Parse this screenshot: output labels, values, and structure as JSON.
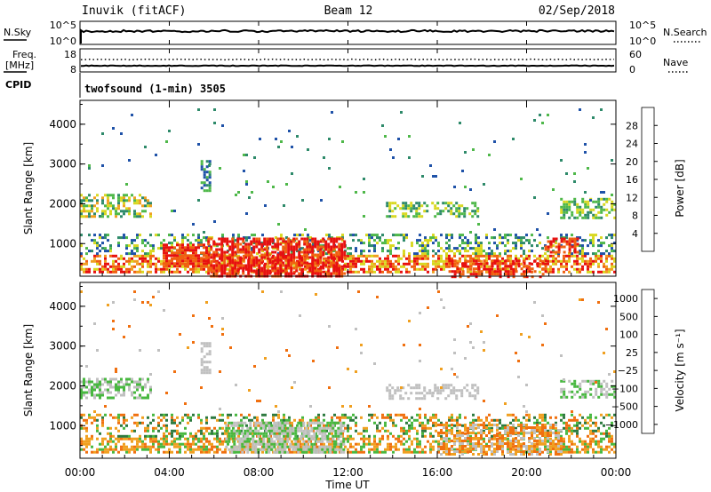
{
  "header": {
    "station": "Inuvik (fitACF)",
    "beam": "Beam 12",
    "date": "02/Sep/2018"
  },
  "top_panels": {
    "nsky_label": "N.Sky",
    "nsky_ticks": [
      "10^5",
      "10^0"
    ],
    "nsearch_label": "N.Search",
    "nsearch_ticks": [
      "10^5",
      "10^0"
    ],
    "freq_label_1": "Freq.",
    "freq_label_2": "[MHz]",
    "freq_ticks": [
      "18",
      "8"
    ],
    "nave_label": "Nave",
    "nave_ticks": [
      "60",
      "0"
    ],
    "cpid_label": "CPID",
    "cpid_text": "twofsound (1-min) 3505"
  },
  "chart_data": [
    {
      "type": "heatmap",
      "name": "power",
      "ylabel": "Slant Range [km]",
      "yticks": [
        "1000",
        "2000",
        "3000",
        "4000"
      ],
      "ylim": [
        180,
        4600
      ],
      "xlim": [
        0,
        24
      ],
      "xticks": [
        "00:00",
        "04:00",
        "08:00",
        "12:00",
        "16:00",
        "20:00",
        "00:00"
      ],
      "colorbar_label": "Power [dB]",
      "colorbar_ticks": [
        "4",
        "8",
        "12",
        "16",
        "20",
        "24",
        "28"
      ],
      "colors": [
        "#1030ff",
        "#1f52a8",
        "#2e8a6a",
        "#4fb84a",
        "#d8d820",
        "#f0a020",
        "#f06010",
        "#e81010"
      ],
      "bands": [
        {
          "t": [
            0.0,
            24.0
          ],
          "r": [
            260,
            720
          ],
          "levels": [
            4,
            5,
            6,
            7
          ],
          "d": 0.6
        },
        {
          "t": [
            0.0,
            24.0
          ],
          "r": [
            720,
            1250
          ],
          "levels": [
            1,
            2,
            3,
            4
          ],
          "d": 0.35
        },
        {
          "t": [
            0.0,
            3.2
          ],
          "r": [
            1650,
            2250
          ],
          "levels": [
            2,
            3,
            4,
            5
          ],
          "d": 0.55
        },
        {
          "t": [
            21.5,
            24.0
          ],
          "r": [
            1650,
            2150
          ],
          "levels": [
            2,
            3,
            4
          ],
          "d": 0.55
        },
        {
          "t": [
            13.7,
            17.8
          ],
          "r": [
            1650,
            2050
          ],
          "levels": [
            2,
            3,
            4
          ],
          "d": 0.45
        },
        {
          "t": [
            5.7,
            11.8
          ],
          "r": [
            180,
            1150
          ],
          "levels": [
            6,
            7,
            7
          ],
          "d": 0.75
        },
        {
          "t": [
            3.7,
            5.7
          ],
          "r": [
            450,
            1000
          ],
          "levels": [
            6,
            7
          ],
          "d": 0.7
        },
        {
          "t": [
            16.5,
            20.8
          ],
          "r": [
            180,
            600
          ],
          "levels": [
            6,
            7
          ],
          "d": 0.55
        },
        {
          "t": [
            20.8,
            22.3
          ],
          "r": [
            800,
            1150
          ],
          "levels": [
            6,
            7
          ],
          "d": 0.6
        },
        {
          "t": [
            5.4,
            5.8
          ],
          "r": [
            2300,
            3100
          ],
          "levels": [
            1,
            2,
            3
          ],
          "d": 0.55
        },
        {
          "t": [
            0.0,
            24.0
          ],
          "r": [
            1250,
            4400
          ],
          "levels": [
            1,
            2,
            3
          ],
          "d": 0.012
        }
      ]
    },
    {
      "type": "heatmap",
      "name": "velocity",
      "ylabel": "Slant Range [km]",
      "yticks": [
        "1000",
        "2000",
        "3000",
        "4000"
      ],
      "ylim": [
        180,
        4600
      ],
      "xlim": [
        0,
        24
      ],
      "xticks": [
        "00:00",
        "04:00",
        "08:00",
        "12:00",
        "16:00",
        "20:00",
        "00:00"
      ],
      "xlabel": "Time UT",
      "colorbar_label": "Velocity [m s⁻¹]",
      "colorbar_ticks": [
        "1000",
        "500",
        "100",
        "25",
        "−25",
        "−100",
        "−500",
        "−1000"
      ],
      "colors": [
        "#2030c0",
        "#3050a8",
        "#2e7a40",
        "#48b840",
        "#c0c0c0",
        "#f0a020",
        "#f07010",
        "#e82010"
      ],
      "bands": [
        {
          "t": [
            0.0,
            24.0
          ],
          "r": [
            300,
            700
          ],
          "levels": [
            5,
            6,
            5,
            3
          ],
          "d": 0.6
        },
        {
          "t": [
            0.0,
            24.0
          ],
          "r": [
            700,
            1300
          ],
          "levels": [
            2,
            3,
            5,
            6
          ],
          "d": 0.38
        },
        {
          "t": [
            0.0,
            3.2
          ],
          "r": [
            1700,
            2200
          ],
          "levels": [
            4,
            3
          ],
          "d": 0.55
        },
        {
          "t": [
            21.5,
            24.0
          ],
          "r": [
            1700,
            2150
          ],
          "levels": [
            4,
            3
          ],
          "d": 0.55
        },
        {
          "t": [
            13.7,
            17.8
          ],
          "r": [
            1650,
            2050
          ],
          "levels": [
            4
          ],
          "d": 0.5
        },
        {
          "t": [
            6.5,
            11.8
          ],
          "r": [
            300,
            1100
          ],
          "levels": [
            4,
            4,
            3
          ],
          "d": 0.7
        },
        {
          "t": [
            16.0,
            21.5
          ],
          "r": [
            300,
            1050
          ],
          "levels": [
            5,
            6,
            4
          ],
          "d": 0.55
        },
        {
          "t": [
            5.4,
            5.8
          ],
          "r": [
            2300,
            3100
          ],
          "levels": [
            4
          ],
          "d": 0.55
        },
        {
          "t": [
            0.0,
            24.0
          ],
          "r": [
            1300,
            4400
          ],
          "levels": [
            4,
            5,
            6
          ],
          "d": 0.012
        }
      ]
    }
  ]
}
